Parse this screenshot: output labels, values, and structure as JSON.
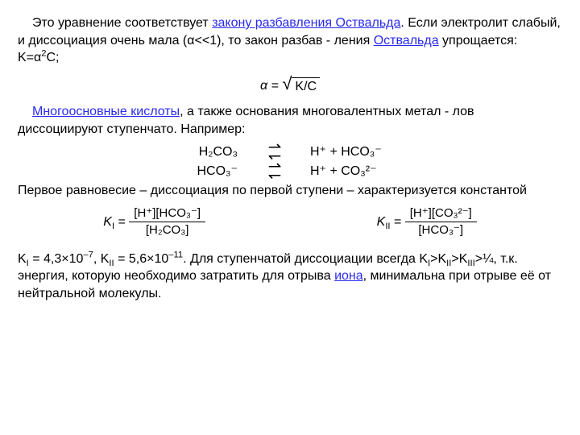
{
  "p1_a": "Это уравнение соответствует ",
  "p1_link1": "закону разбавления Оствальда",
  "p1_b": ". Если электролит слабый, и диссоциация очень мала (α<<1), то закон разбав - ления ",
  "p1_link2": "Оствальда",
  "p1_c": " упрощается: K=α",
  "p1_sup": "2",
  "p1_d": "C;",
  "alpha_eq_lhs": "α =",
  "alpha_eq_body": "K/C",
  "p2_link": "Многоосновные кислоты",
  "p2_a": ", а также основания многовалентных метал - лов диссоциируют ступенчато. Например:",
  "eq1_left": "H₂CO₃",
  "eq1_right": "H⁺ + HCO₃⁻",
  "eq2_left": "HCO₃⁻",
  "eq2_right": "H⁺ + CO₃²⁻",
  "p3": "Первое равновесие – диссоциация по первой ступени – характеризуется константой",
  "k1_label": "K",
  "k1_sub": "I",
  "k1_num": "[H⁺][HCO₃⁻]",
  "k1_den": "[H₂CO₃]",
  "k2_label": "K",
  "k2_sub": "II",
  "k2_num": "[H⁺][CO₃²⁻]",
  "k2_den": "[HCO₃⁻]",
  "p4_a": "K",
  "p4_b": " = 4,3×10",
  "p4_c": ", K",
  "p4_d": " = 5,6×10",
  "p4_e": ". Для ступенчатой диссоциации всегда  K",
  "p4_f": ">K",
  "p4_g": ">K",
  "p4_h": ">¼, т.к.  энергия, которую необходимо затратить для отрыва ",
  "p4_link": "иона",
  "p4_i": ", минимальна при отрыве её от нейтральной молекулы.",
  "exp_m7": "–7",
  "exp_m11": "–11",
  "sub_I": "I",
  "sub_II": "II",
  "sub_III": "III",
  "eq_sign": " = "
}
